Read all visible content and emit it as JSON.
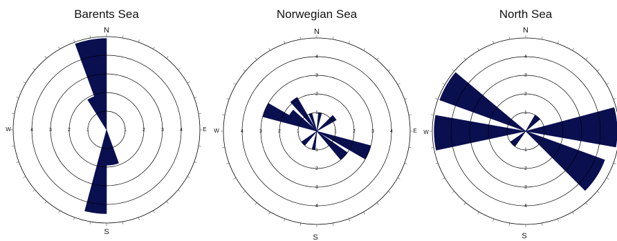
{
  "figure": {
    "label_color": "#111111",
    "wedge_color": "#0a0f50",
    "ring_color": "#000000"
  },
  "chart_data": [
    {
      "type": "polar-bar",
      "title": "Barents Sea",
      "compass": {
        "n": "N",
        "s": "S",
        "e": "E",
        "w": "W"
      },
      "radial_ticks": [
        "1",
        "2",
        "3",
        "4"
      ],
      "rlim": [
        0,
        4.5
      ],
      "wedges": [
        {
          "from_deg": 340,
          "to_deg": 360,
          "value": 4.9
        },
        {
          "from_deg": 328,
          "to_deg": 348,
          "value": 1.9
        },
        {
          "from_deg": 180,
          "to_deg": 195,
          "value": 4.5
        },
        {
          "from_deg": 160,
          "to_deg": 180,
          "value": 1.9
        }
      ]
    },
    {
      "type": "polar-bar",
      "title": "Norwegian Sea",
      "compass": {
        "n": "N",
        "s": "S",
        "e": "E",
        "w": "W"
      },
      "radial_ticks": [
        "1",
        "2",
        "3",
        "4",
        "1",
        "2",
        "3",
        "4",
        "1",
        "2",
        "3",
        "4",
        "1",
        "2",
        "3",
        "4"
      ],
      "rlim": [
        0,
        4.5
      ],
      "wedges": [
        {
          "from_deg": 285,
          "to_deg": 300,
          "value": 3.0
        },
        {
          "from_deg": 300,
          "to_deg": 312,
          "value": 1.7
        },
        {
          "from_deg": 318,
          "to_deg": 330,
          "value": 2.1
        },
        {
          "from_deg": 335,
          "to_deg": 345,
          "value": 1.0
        },
        {
          "from_deg": 5,
          "to_deg": 15,
          "value": 1.0
        },
        {
          "from_deg": 45,
          "to_deg": 60,
          "value": 1.2
        },
        {
          "from_deg": 105,
          "to_deg": 120,
          "value": 3.0
        },
        {
          "from_deg": 125,
          "to_deg": 140,
          "value": 2.0
        },
        {
          "from_deg": 185,
          "to_deg": 195,
          "value": 1.0
        },
        {
          "from_deg": 220,
          "to_deg": 235,
          "value": 1.0
        }
      ]
    },
    {
      "type": "polar-bar",
      "title": "North Sea",
      "compass": {
        "n": "N",
        "s": "S",
        "e": "E",
        "w": "W"
      },
      "radial_ticks": [
        "1",
        "2",
        "3",
        "4",
        "1",
        "2",
        "3",
        "4"
      ],
      "rlim": [
        0,
        4.5
      ],
      "wedges": [
        {
          "from_deg": 258,
          "to_deg": 280,
          "value": 4.9
        },
        {
          "from_deg": 290,
          "to_deg": 310,
          "value": 4.9
        },
        {
          "from_deg": 75,
          "to_deg": 100,
          "value": 4.9
        },
        {
          "from_deg": 110,
          "to_deg": 135,
          "value": 4.5
        },
        {
          "from_deg": 30,
          "to_deg": 50,
          "value": 1.0
        },
        {
          "from_deg": 215,
          "to_deg": 235,
          "value": 1.0
        }
      ]
    }
  ]
}
